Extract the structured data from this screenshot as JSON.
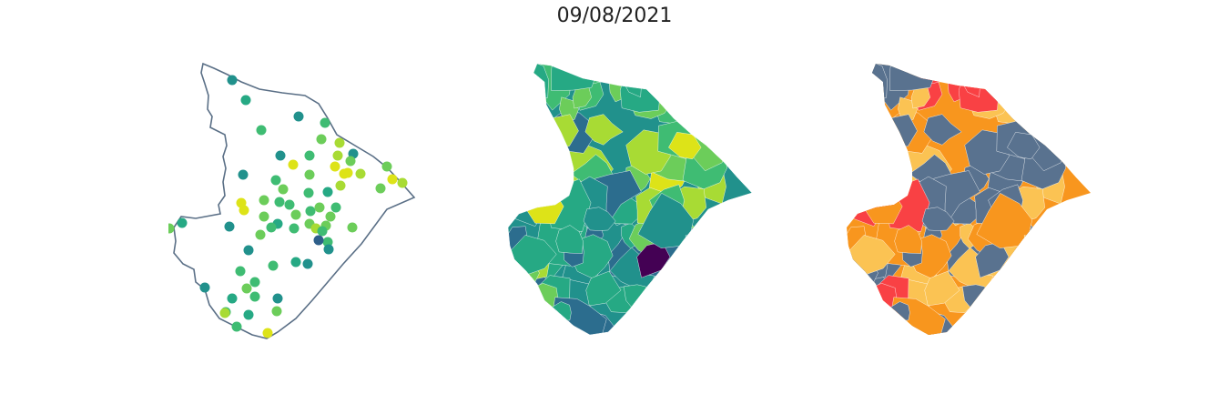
{
  "title": "09/08/2021",
  "maps": {
    "outline_color": "#5a6f86",
    "points_palette": [
      "#2e5f8a",
      "#21918c",
      "#26a984",
      "#3fbc73",
      "#6ccd5a",
      "#a8db34",
      "#dde318"
    ],
    "choropleth_palette": [
      "#440154",
      "#2c6d8e",
      "#21918c",
      "#26a984",
      "#3fbc73",
      "#6ccd5a",
      "#a8db34",
      "#dde318"
    ],
    "class_palette": [
      "#59728f",
      "#fbc353",
      "#f8961e",
      "#f94144"
    ]
  }
}
